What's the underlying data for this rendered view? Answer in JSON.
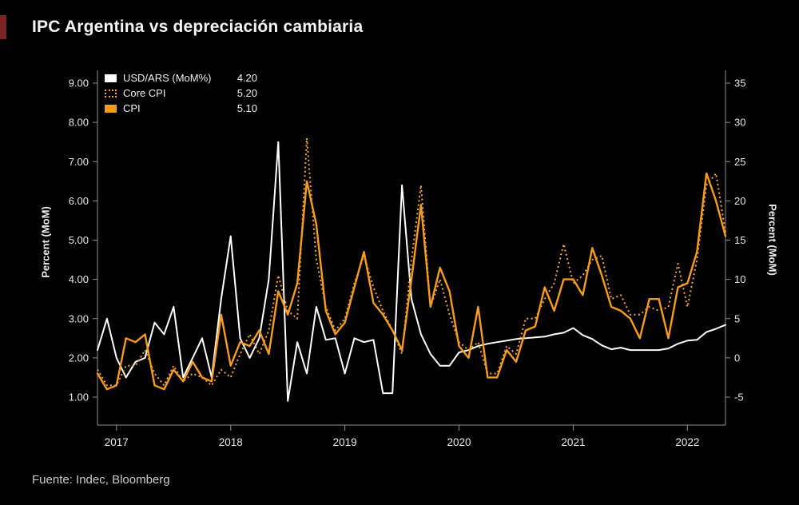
{
  "title": "IPC Argentina vs depreciación cambiaria",
  "source": "Fuente: Indec, Bloomberg",
  "legend": [
    {
      "label": "USD/ARS (MoM%)",
      "value": "4.20",
      "color": "#ffffff",
      "style": "solid"
    },
    {
      "label": "Core CPI",
      "value": "5.20",
      "color": "#f4a83e",
      "style": "dotted"
    },
    {
      "label": "CPI",
      "value": "5.10",
      "color": "#f89c1c",
      "style": "solid"
    }
  ],
  "axes": {
    "left": {
      "label": "Percent (MoM)",
      "ticks": [
        "9.00",
        "8.00",
        "7.00",
        "6.00",
        "5.00",
        "4.00",
        "3.00",
        "2.00",
        "1.00"
      ]
    },
    "right": {
      "label": "Percent (MoM)",
      "ticks": [
        "35",
        "30",
        "25",
        "20",
        "15",
        "10",
        "5",
        "0",
        "-5"
      ]
    },
    "x": {
      "ticks": [
        "2017",
        "2018",
        "2019",
        "2020",
        "2021",
        "2022"
      ]
    }
  },
  "chart_data": {
    "type": "line",
    "title": "IPC Argentina vs depreciación cambiaria",
    "x": [
      "2016-11",
      "2016-12",
      "2017-01",
      "2017-02",
      "2017-03",
      "2017-04",
      "2017-05",
      "2017-06",
      "2017-07",
      "2017-08",
      "2017-09",
      "2017-10",
      "2017-11",
      "2017-12",
      "2018-01",
      "2018-02",
      "2018-03",
      "2018-04",
      "2018-05",
      "2018-06",
      "2018-07",
      "2018-08",
      "2018-09",
      "2018-10",
      "2018-11",
      "2018-12",
      "2019-01",
      "2019-02",
      "2019-03",
      "2019-04",
      "2019-05",
      "2019-06",
      "2019-07",
      "2019-08",
      "2019-09",
      "2019-10",
      "2019-11",
      "2019-12",
      "2020-01",
      "2020-02",
      "2020-03",
      "2020-04",
      "2020-05",
      "2020-06",
      "2020-07",
      "2020-08",
      "2020-09",
      "2020-10",
      "2020-11",
      "2020-12",
      "2021-01",
      "2021-02",
      "2021-03",
      "2021-04",
      "2021-05",
      "2021-06",
      "2021-07",
      "2021-08",
      "2021-09",
      "2021-10",
      "2021-11",
      "2021-12",
      "2022-01",
      "2022-02",
      "2022-03",
      "2022-04",
      "2022-05"
    ],
    "series": [
      {
        "name": "USD/ARS (MoM%)",
        "axis": "right",
        "color": "#ffffff",
        "style": "solid",
        "last_value": 4.2,
        "values": [
          1.0,
          5.0,
          0.0,
          -2.5,
          -0.5,
          0.0,
          4.5,
          3.0,
          6.5,
          -2.5,
          0.0,
          2.5,
          -2.5,
          7.5,
          15.5,
          2.5,
          0.0,
          2.5,
          10.0,
          27.5,
          -5.5,
          2.0,
          -2.0,
          6.5,
          2.3,
          2.5,
          -2.0,
          2.5,
          2.0,
          2.3,
          -4.5,
          -4.5,
          22.0,
          7.5,
          3.0,
          0.5,
          -1.0,
          -1.0,
          0.7,
          1.0,
          1.5,
          1.8,
          2.0,
          2.2,
          2.4,
          2.5,
          2.6,
          2.7,
          3.0,
          3.2,
          3.8,
          2.9,
          2.4,
          1.6,
          1.1,
          1.3,
          1.0,
          1.0,
          1.0,
          1.0,
          1.2,
          1.8,
          2.2,
          2.3,
          3.3,
          3.7,
          4.2
        ]
      },
      {
        "name": "Core CPI",
        "axis": "left",
        "color": "#f4a83e",
        "style": "dotted",
        "last_value": 5.2,
        "values": [
          1.7,
          1.3,
          1.3,
          1.8,
          1.8,
          2.2,
          1.6,
          1.3,
          1.8,
          1.4,
          1.6,
          1.5,
          1.3,
          1.7,
          1.5,
          2.1,
          2.6,
          2.1,
          2.7,
          4.1,
          3.2,
          3.0,
          7.6,
          4.5,
          3.3,
          2.7,
          3.0,
          3.9,
          4.6,
          3.8,
          3.2,
          2.7,
          2.1,
          4.5,
          6.4,
          3.3,
          4.0,
          3.1,
          2.4,
          2.2,
          2.4,
          1.6,
          1.6,
          2.3,
          2.1,
          3.0,
          3.0,
          3.5,
          3.9,
          4.9,
          3.9,
          4.1,
          4.5,
          4.6,
          3.5,
          3.6,
          3.1,
          3.1,
          3.3,
          3.2,
          3.3,
          4.4,
          3.3,
          4.5,
          6.4,
          6.7,
          5.2
        ]
      },
      {
        "name": "CPI",
        "axis": "left",
        "color": "#f89c1c",
        "style": "solid",
        "last_value": 5.1,
        "values": [
          1.6,
          1.2,
          1.3,
          2.5,
          2.4,
          2.6,
          1.3,
          1.2,
          1.7,
          1.4,
          1.9,
          1.5,
          1.4,
          3.1,
          1.8,
          2.4,
          2.3,
          2.7,
          2.1,
          3.7,
          3.1,
          3.9,
          6.5,
          5.4,
          3.2,
          2.6,
          2.9,
          3.8,
          4.7,
          3.4,
          3.1,
          2.7,
          2.2,
          4.0,
          5.9,
          3.3,
          4.3,
          3.7,
          2.3,
          2.0,
          3.3,
          1.5,
          1.5,
          2.2,
          1.9,
          2.7,
          2.8,
          3.8,
          3.2,
          4.0,
          4.0,
          3.6,
          4.8,
          4.1,
          3.3,
          3.2,
          3.0,
          2.5,
          3.5,
          3.5,
          2.5,
          3.8,
          3.9,
          4.7,
          6.7,
          6.0,
          5.1
        ]
      }
    ],
    "left_axis": {
      "label": "Percent (MoM)",
      "ticks": [
        9,
        8,
        7,
        6,
        5,
        4,
        3,
        2,
        1
      ],
      "range": [
        0.6,
        9.3
      ]
    },
    "right_axis": {
      "label": "Percent (MoM)",
      "ticks": [
        35,
        30,
        25,
        20,
        15,
        10,
        5,
        0,
        -5
      ],
      "range": [
        -7,
        36.5
      ]
    },
    "grid": false,
    "legend_position": "top-left"
  }
}
